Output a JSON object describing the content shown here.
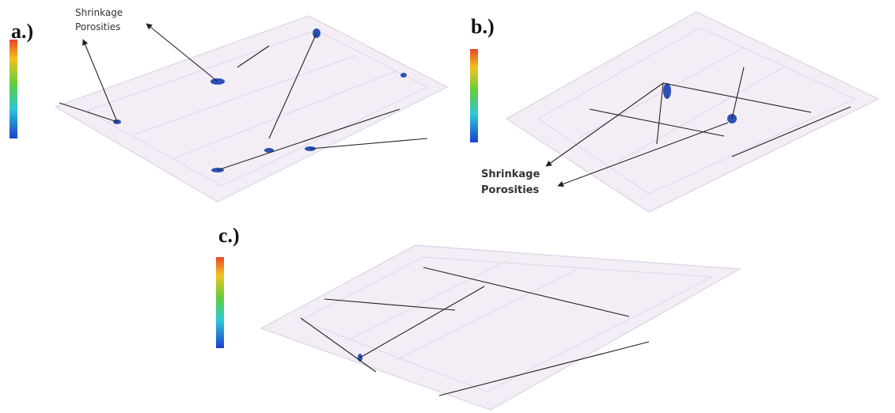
{
  "panels": [
    {
      "label": "a.)",
      "annotation": [
        "Shrinkage",
        "Porosities"
      ]
    },
    {
      "label": "b.)",
      "annotation": [
        "Shrinkage",
        "Porosities"
      ]
    },
    {
      "label": "c.)"
    }
  ]
}
